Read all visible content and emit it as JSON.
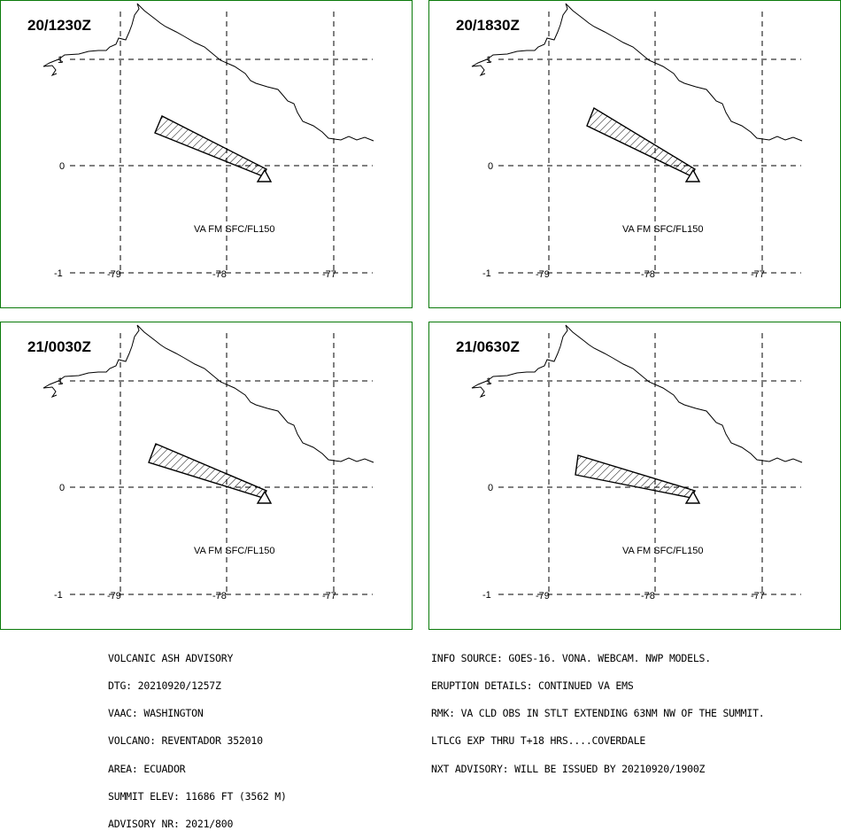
{
  "panels": [
    {
      "time": "20/1230Z",
      "label": "VA FM SFC/FL150"
    },
    {
      "time": "20/1830Z",
      "label": "VA FM SFC/FL150"
    },
    {
      "time": "21/0030Z",
      "label": "VA FM SFC/FL150"
    },
    {
      "time": "21/0630Z",
      "label": "VA FM SFC/FL150"
    }
  ],
  "axes": {
    "lat_labels": [
      "1",
      "0",
      "-1"
    ],
    "lon_labels": [
      "-79",
      "-78",
      "-77"
    ]
  },
  "advisory_left": [
    "VOLCANIC ASH ADVISORY",
    "DTG: 20210920/1257Z",
    "VAAC: WASHINGTON",
    "VOLCANO: REVENTADOR 352010",
    "AREA: ECUADOR",
    "SUMMIT ELEV: 11686 FT (3562 M)",
    "ADVISORY NR: 2021/800"
  ],
  "advisory_right": [
    "INFO SOURCE: GOES-16. VONA. WEBCAM. NWP MODELS.",
    "ERUPTION DETAILS: CONTINUED VA EMS",
    "RMK: VA CLD OBS IN STLT EXTENDING 63NM NW OF THE SUMMIT.",
    "LTLCG EXP THRU T+18 HRS....COVERDALE",
    "NXT ADVISORY: WILL BE ISSUED BY 20210920/1900Z"
  ]
}
